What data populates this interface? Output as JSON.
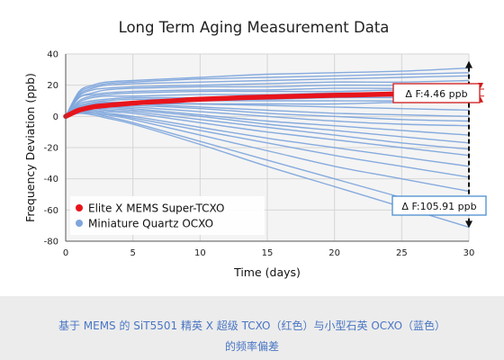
{
  "chart_data": {
    "type": "line",
    "title": "Long Term Aging Measurement Data",
    "xlabel": "Time (days)",
    "ylabel": "Frequency Deviation (ppb)",
    "xlim": [
      0,
      30
    ],
    "ylim": [
      -80,
      40
    ],
    "x_ticks": [
      0,
      5,
      10,
      15,
      20,
      25,
      30
    ],
    "y_ticks": [
      -80,
      -60,
      -40,
      -20,
      0,
      20,
      40
    ],
    "grid": true,
    "legend_placement": "lower-left",
    "legend": [
      {
        "label": "Elite X MEMS Super-TCXO",
        "color": "#e8141b"
      },
      {
        "label": "Miniature Quartz OCXO",
        "color": "#7fa6dc"
      }
    ],
    "annotations": [
      {
        "text": "Δ F:4.46 ppb",
        "at_x": 30,
        "from_y": 13,
        "to_y": 17.5,
        "border": "#d01a1a"
      },
      {
        "text": "Δ F:105.91 ppb",
        "at_x": 30,
        "from_y": -71,
        "to_y": 35,
        "border": "#4a8fd0"
      }
    ],
    "series": [
      {
        "name": "Elite X MEMS Super-TCXO",
        "color": "#e8141b",
        "x": [
          0,
          1,
          2,
          3,
          5,
          8,
          10,
          15,
          20,
          25,
          30
        ],
        "y": [
          0,
          4,
          6,
          7,
          8.5,
          10,
          11,
          12.5,
          13.5,
          14.5,
          15.5
        ]
      },
      {
        "name": "Miniature Quartz OCXO",
        "color": "#7fa6dc",
        "x": [
          0,
          1,
          2,
          3,
          5,
          10,
          15,
          20,
          25,
          30
        ],
        "curves": [
          [
            0,
            16,
            20,
            22,
            23,
            25,
            27,
            28,
            29,
            31
          ],
          [
            0,
            15,
            19,
            21,
            22,
            24,
            25,
            26,
            27,
            28
          ],
          [
            0,
            14,
            18,
            20,
            21,
            22,
            23,
            24,
            25,
            26
          ],
          [
            0,
            13,
            17,
            18,
            19,
            20,
            21,
            22,
            22,
            23
          ],
          [
            0,
            12,
            15,
            17,
            18,
            19,
            19,
            20,
            20,
            21
          ],
          [
            0,
            12,
            14,
            15,
            16,
            17,
            17,
            18,
            18,
            19
          ],
          [
            0,
            10,
            13,
            14,
            15,
            16,
            16,
            16,
            17,
            17
          ],
          [
            0,
            9,
            12,
            13,
            13,
            14,
            14,
            15,
            15,
            15
          ],
          [
            0,
            8,
            10,
            11,
            12,
            12,
            13,
            13,
            13,
            14
          ],
          [
            0,
            7,
            9,
            10,
            11,
            11,
            11,
            12,
            12,
            12
          ],
          [
            0,
            6,
            8,
            9,
            9,
            10,
            10,
            10,
            10,
            11
          ],
          [
            0,
            5,
            7,
            7,
            8,
            8,
            8,
            8,
            9,
            9
          ],
          [
            0,
            6,
            8,
            9,
            9,
            8,
            7,
            6,
            5,
            4
          ],
          [
            0,
            6,
            8,
            8,
            8,
            6,
            4,
            2,
            1,
            0
          ],
          [
            0,
            5,
            7,
            7,
            7,
            5,
            2,
            0,
            -2,
            -3
          ],
          [
            0,
            5,
            6,
            6,
            6,
            3,
            0,
            -3,
            -5,
            -6
          ],
          [
            0,
            5,
            6,
            6,
            5,
            1,
            -3,
            -6,
            -9,
            -12
          ],
          [
            0,
            4,
            5,
            5,
            4,
            0,
            -5,
            -9,
            -13,
            -17
          ],
          [
            0,
            4,
            5,
            4,
            3,
            -2,
            -7,
            -12,
            -17,
            -21
          ],
          [
            0,
            3,
            4,
            3,
            2,
            -4,
            -10,
            -15,
            -20,
            -25
          ],
          [
            0,
            3,
            3,
            2,
            0,
            -7,
            -14,
            -20,
            -26,
            -32
          ],
          [
            0,
            3,
            3,
            2,
            -1,
            -9,
            -17,
            -25,
            -32,
            -39
          ],
          [
            0,
            3,
            2,
            1,
            -2,
            -12,
            -22,
            -32,
            -40,
            -48
          ],
          [
            0,
            2,
            2,
            0,
            -4,
            -16,
            -28,
            -40,
            -52,
            -63
          ],
          [
            0,
            2,
            1,
            -1,
            -5,
            -18,
            -32,
            -45,
            -58,
            -71
          ]
        ]
      }
    ]
  },
  "caption": {
    "line1": "基于 MEMS 的 SiT5501 精英 X 超级 TCXO（红色）与小型石英 OCXO（蓝色）",
    "line2": "的频率偏差"
  }
}
